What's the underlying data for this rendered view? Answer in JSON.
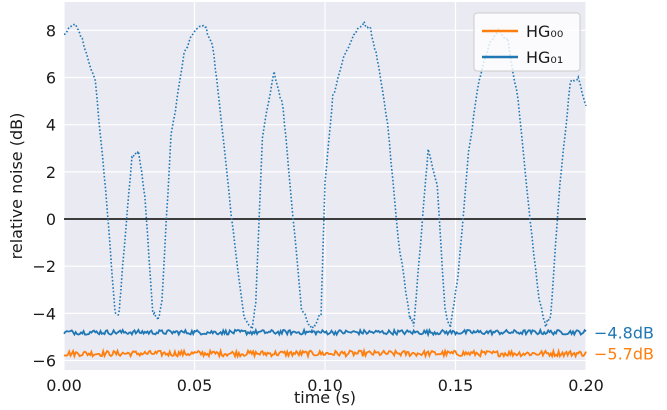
{
  "chart_data": {
    "type": "line",
    "title": "",
    "xlabel": "time (s)",
    "ylabel": "relative noise (dB)",
    "xlim": [
      0.0,
      0.2
    ],
    "ylim": [
      -6.4,
      9.2
    ],
    "x_ticks": [
      0.0,
      0.05,
      0.1,
      0.15,
      0.2
    ],
    "x_tick_labels": [
      "0.00",
      "0.05",
      "0.10",
      "0.15",
      "0.20"
    ],
    "y_ticks": [
      -6,
      -4,
      -2,
      0,
      2,
      4,
      6,
      8
    ],
    "y_tick_labels": [
      "−6",
      "−4",
      "−2",
      "0",
      "2",
      "4",
      "6",
      "8"
    ],
    "grid": true,
    "legend_position": "top-right",
    "reference_line": {
      "y": 0,
      "color": "#000000"
    },
    "series": [
      {
        "name": "HG₀₀",
        "color": "#ff7f0e",
        "style": "solid",
        "level": -5.7,
        "noise_amplitude": 0.12,
        "end_label": "−5.7dB"
      },
      {
        "name": "HG₀₁",
        "color": "#1f77b4",
        "style": "solid",
        "level": -4.8,
        "noise_amplitude": 0.1,
        "end_label": "−4.8dB"
      },
      {
        "name": "HG₀₁",
        "color": "#1f77b4",
        "style": "dotted",
        "in_legend": false,
        "x": [
          0.0,
          0.004,
          0.007,
          0.012,
          0.016,
          0.0195,
          0.021,
          0.0225,
          0.026,
          0.0285,
          0.031,
          0.034,
          0.036,
          0.0375,
          0.041,
          0.046,
          0.05,
          0.054,
          0.057,
          0.06,
          0.064,
          0.069,
          0.072,
          0.0735,
          0.076,
          0.0805,
          0.084,
          0.087,
          0.091,
          0.095,
          0.0985,
          0.1,
          0.103,
          0.107,
          0.111,
          0.115,
          0.1175,
          0.12,
          0.124,
          0.128,
          0.1325,
          0.134,
          0.137,
          0.1395,
          0.143,
          0.146,
          0.148,
          0.151,
          0.155,
          0.159,
          0.163,
          0.1665,
          0.17,
          0.174,
          0.178,
          0.182,
          0.1845,
          0.1865,
          0.19,
          0.194,
          0.197,
          0.2
        ],
        "y": [
          7.8,
          8.3,
          7.6,
          5.8,
          1.2,
          -3.9,
          -4.1,
          -2.0,
          2.6,
          2.9,
          1.0,
          -3.9,
          -4.3,
          -3.5,
          3.5,
          7.0,
          8.0,
          8.2,
          7.3,
          4.5,
          0.2,
          -4.2,
          -4.7,
          -3.5,
          3.5,
          6.2,
          4.7,
          1.0,
          -3.8,
          -4.7,
          -4.0,
          1.5,
          5.2,
          6.8,
          7.8,
          8.3,
          8.0,
          6.8,
          4.0,
          -0.8,
          -4.2,
          -4.5,
          -0.5,
          2.9,
          1.5,
          -3.9,
          -4.6,
          -2.4,
          2.8,
          5.9,
          7.4,
          8.0,
          7.6,
          5.0,
          0.5,
          -3.4,
          -4.5,
          -4.1,
          1.5,
          5.8,
          6.0,
          4.8
        ]
      }
    ]
  }
}
